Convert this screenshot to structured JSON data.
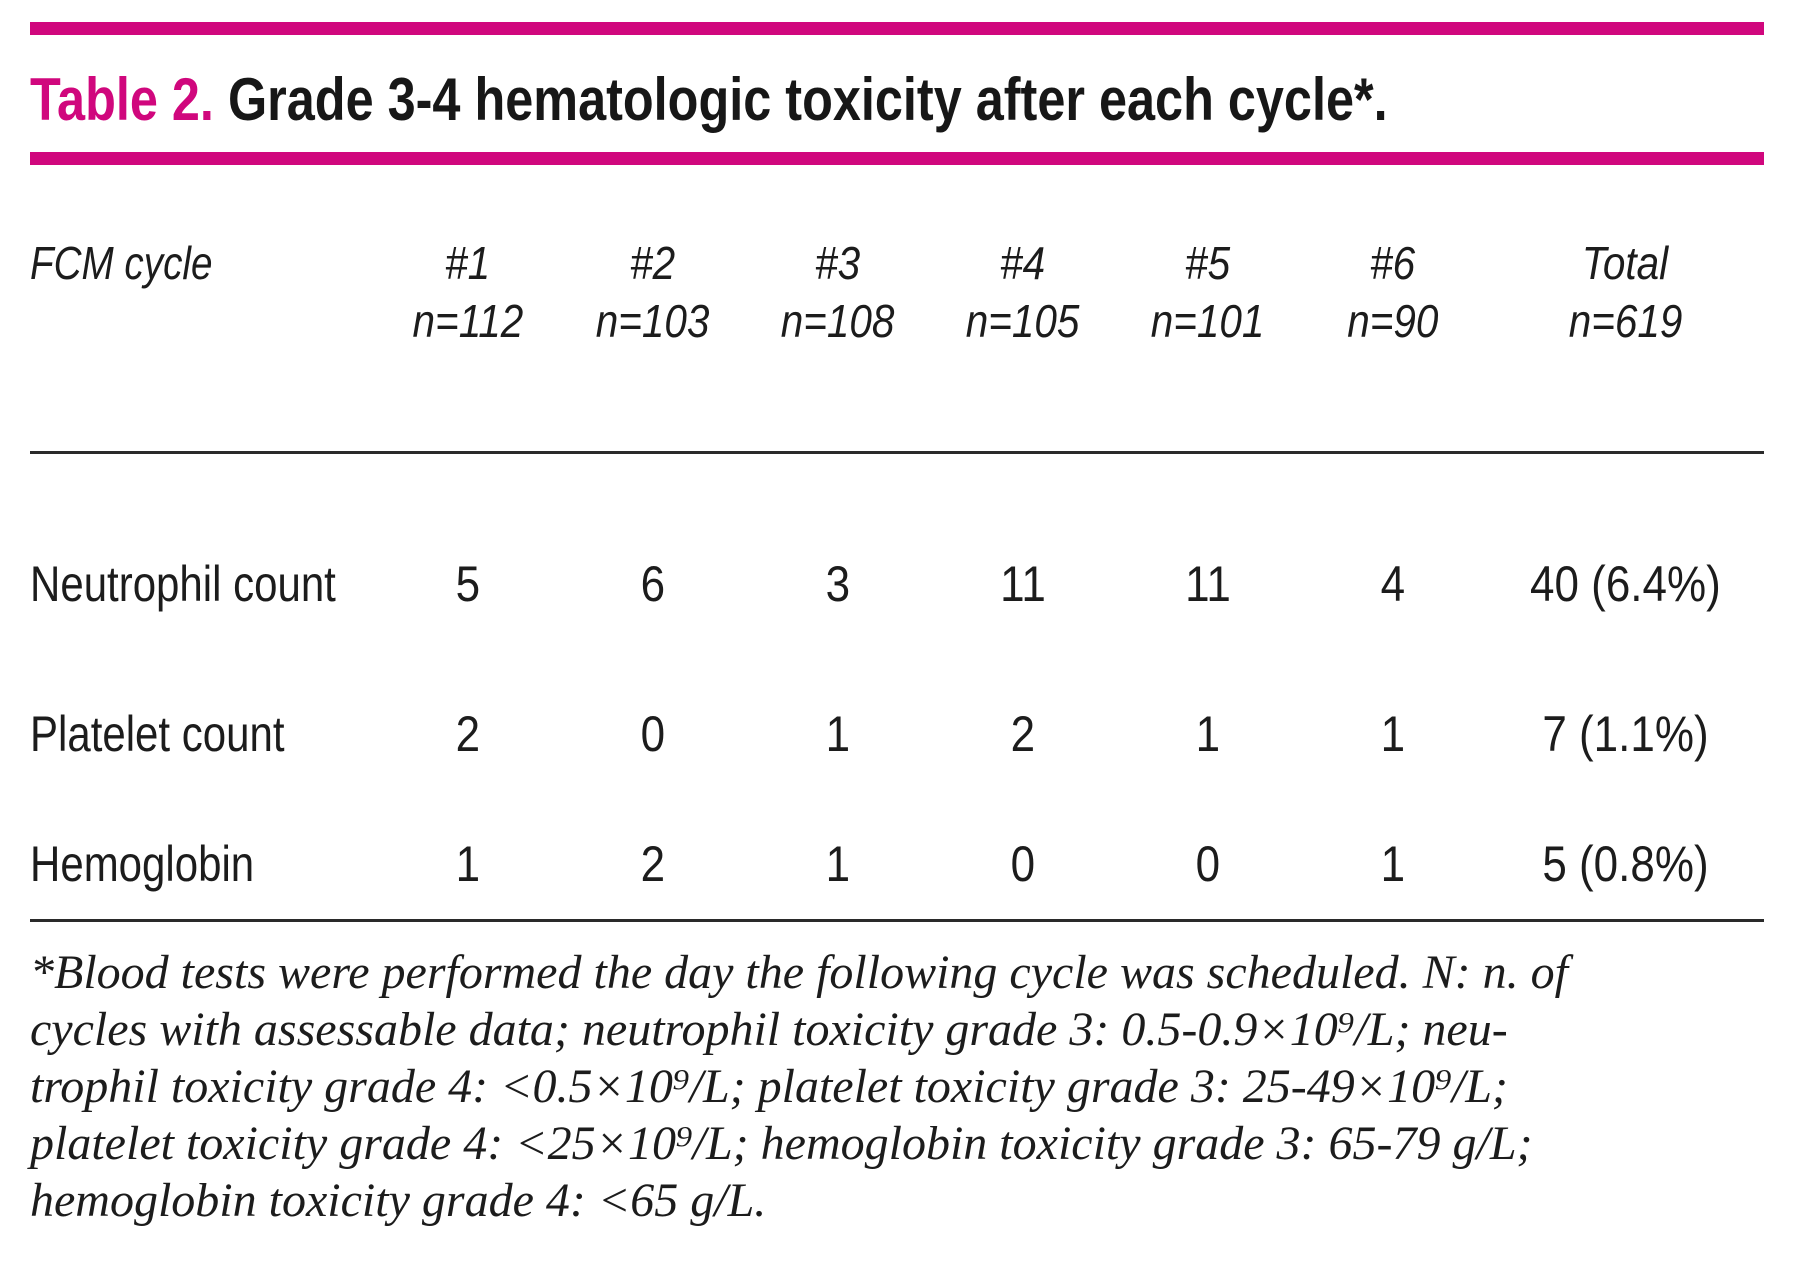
{
  "colors": {
    "accent_magenta": "#d0077d",
    "rule_black": "#2a2a2a"
  },
  "table": {
    "title_label": "Table 2.",
    "title_text": "Grade 3-4 hematologic toxicity after each cycle*.",
    "header": {
      "row_label": "FCM cycle",
      "columns": [
        {
          "cycle": "#1",
          "n": "n=112"
        },
        {
          "cycle": "#2",
          "n": "n=103"
        },
        {
          "cycle": "#3",
          "n": "n=108"
        },
        {
          "cycle": "#4",
          "n": "n=105"
        },
        {
          "cycle": "#5",
          "n": "n=101"
        },
        {
          "cycle": "#6",
          "n": "n=90"
        },
        {
          "cycle": "Total",
          "n": "n=619"
        }
      ]
    },
    "rows": [
      {
        "label": "Neutrophil count",
        "values": [
          "5",
          "6",
          "3",
          "11",
          "11",
          "4",
          "40 (6.4%)"
        ]
      },
      {
        "label": "Platelet count",
        "values": [
          "2",
          "0",
          "1",
          "2",
          "1",
          "1",
          "7 (1.1%)"
        ]
      },
      {
        "label": "Hemoglobin",
        "values": [
          "1",
          "2",
          "1",
          "0",
          "0",
          "1",
          "5 (0.8%)"
        ]
      }
    ],
    "footnote_lines": [
      "*Blood tests were performed the day the following cycle was scheduled. N: n. of",
      "cycles with assessable data; neutrophil toxicity grade 3: 0.5-0.9×10⁹/L; neu-",
      "trophil toxicity grade 4: <0.5×10⁹/L; platelet toxicity grade 3: 25-49×10⁹/L;",
      "platelet toxicity grade 4: <25×10⁹/L; hemoglobin toxicity grade 3: 65-79 g/L;",
      "hemoglobin toxicity grade 4: <65 g/L."
    ]
  }
}
